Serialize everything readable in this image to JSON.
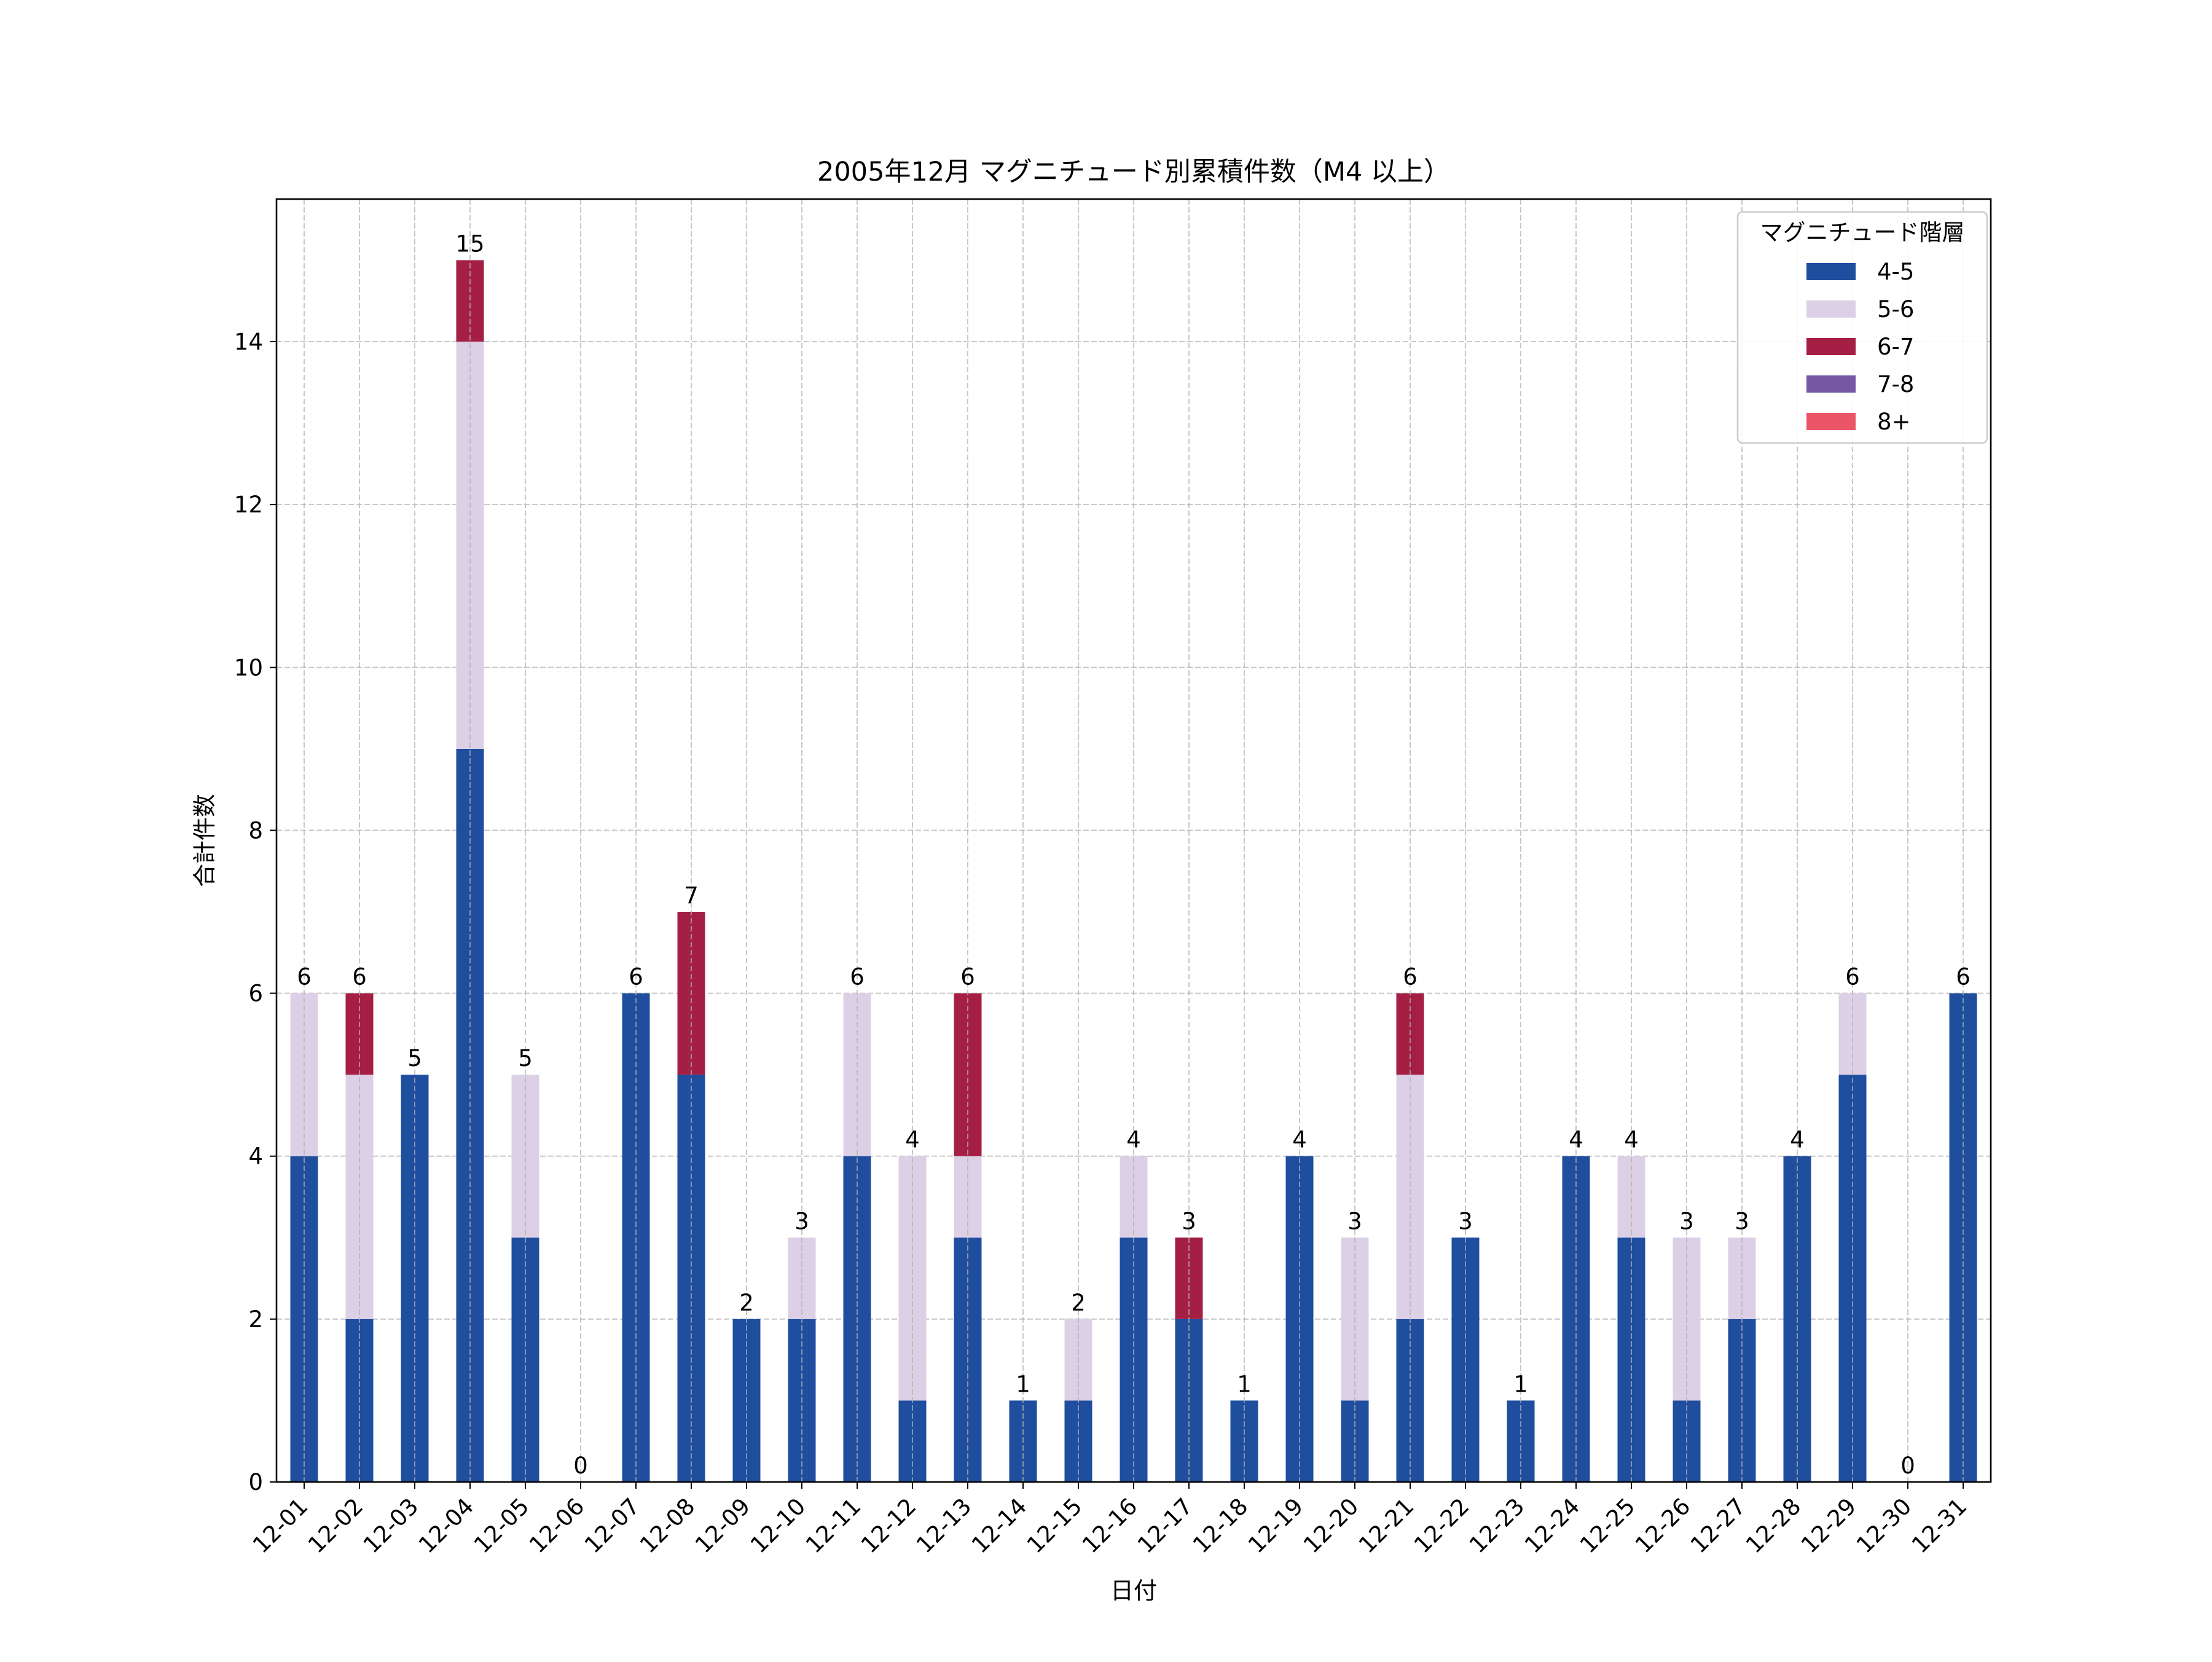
{
  "chart_data": {
    "type": "bar",
    "stacked": true,
    "title": "2005年12月 マグニチュード別累積件数（M4 以上）",
    "xlabel": "日付",
    "ylabel": "合計件数",
    "ylim": [
      0,
      15.75
    ],
    "yticks": [
      0,
      2,
      4,
      6,
      8,
      10,
      12,
      14
    ],
    "grid": true,
    "legend": {
      "title": "マグニチュード階層",
      "placement": "top-right"
    },
    "categories": [
      "12-01",
      "12-02",
      "12-03",
      "12-04",
      "12-05",
      "12-06",
      "12-07",
      "12-08",
      "12-09",
      "12-10",
      "12-11",
      "12-12",
      "12-13",
      "12-14",
      "12-15",
      "12-16",
      "12-17",
      "12-18",
      "12-19",
      "12-20",
      "12-21",
      "12-22",
      "12-23",
      "12-24",
      "12-25",
      "12-26",
      "12-27",
      "12-28",
      "12-29",
      "12-30",
      "12-31"
    ],
    "series": [
      {
        "name": "4-5",
        "color": "#1f4e9f",
        "values": [
          4,
          2,
          5,
          9,
          3,
          0,
          6,
          5,
          2,
          2,
          4,
          1,
          3,
          1,
          1,
          3,
          2,
          1,
          4,
          1,
          2,
          3,
          1,
          4,
          3,
          1,
          2,
          4,
          5,
          0,
          6
        ]
      },
      {
        "name": "5-6",
        "color": "#dcd0e6",
        "values": [
          2,
          3,
          0,
          5,
          2,
          0,
          0,
          0,
          0,
          1,
          2,
          3,
          1,
          0,
          1,
          1,
          0,
          0,
          0,
          2,
          3,
          0,
          0,
          0,
          1,
          2,
          1,
          0,
          1,
          0,
          0
        ]
      },
      {
        "name": "6-7",
        "color": "#a51f45",
        "values": [
          0,
          1,
          0,
          1,
          0,
          0,
          0,
          2,
          0,
          0,
          0,
          0,
          2,
          0,
          0,
          0,
          1,
          0,
          0,
          0,
          1,
          0,
          0,
          0,
          0,
          0,
          0,
          0,
          0,
          0,
          0
        ]
      },
      {
        "name": "7-8",
        "color": "#7559a6",
        "values": [
          0,
          0,
          0,
          0,
          0,
          0,
          0,
          0,
          0,
          0,
          0,
          0,
          0,
          0,
          0,
          0,
          0,
          0,
          0,
          0,
          0,
          0,
          0,
          0,
          0,
          0,
          0,
          0,
          0,
          0,
          0
        ]
      },
      {
        "name": "8+",
        "color": "#ea5668",
        "values": [
          0,
          0,
          0,
          0,
          0,
          0,
          0,
          0,
          0,
          0,
          0,
          0,
          0,
          0,
          0,
          0,
          0,
          0,
          0,
          0,
          0,
          0,
          0,
          0,
          0,
          0,
          0,
          0,
          0,
          0,
          0
        ]
      }
    ],
    "totals": [
      6,
      6,
      5,
      15,
      5,
      0,
      6,
      7,
      2,
      3,
      6,
      4,
      6,
      1,
      2,
      4,
      3,
      1,
      4,
      3,
      6,
      3,
      1,
      4,
      4,
      3,
      3,
      4,
      6,
      0,
      6
    ]
  }
}
